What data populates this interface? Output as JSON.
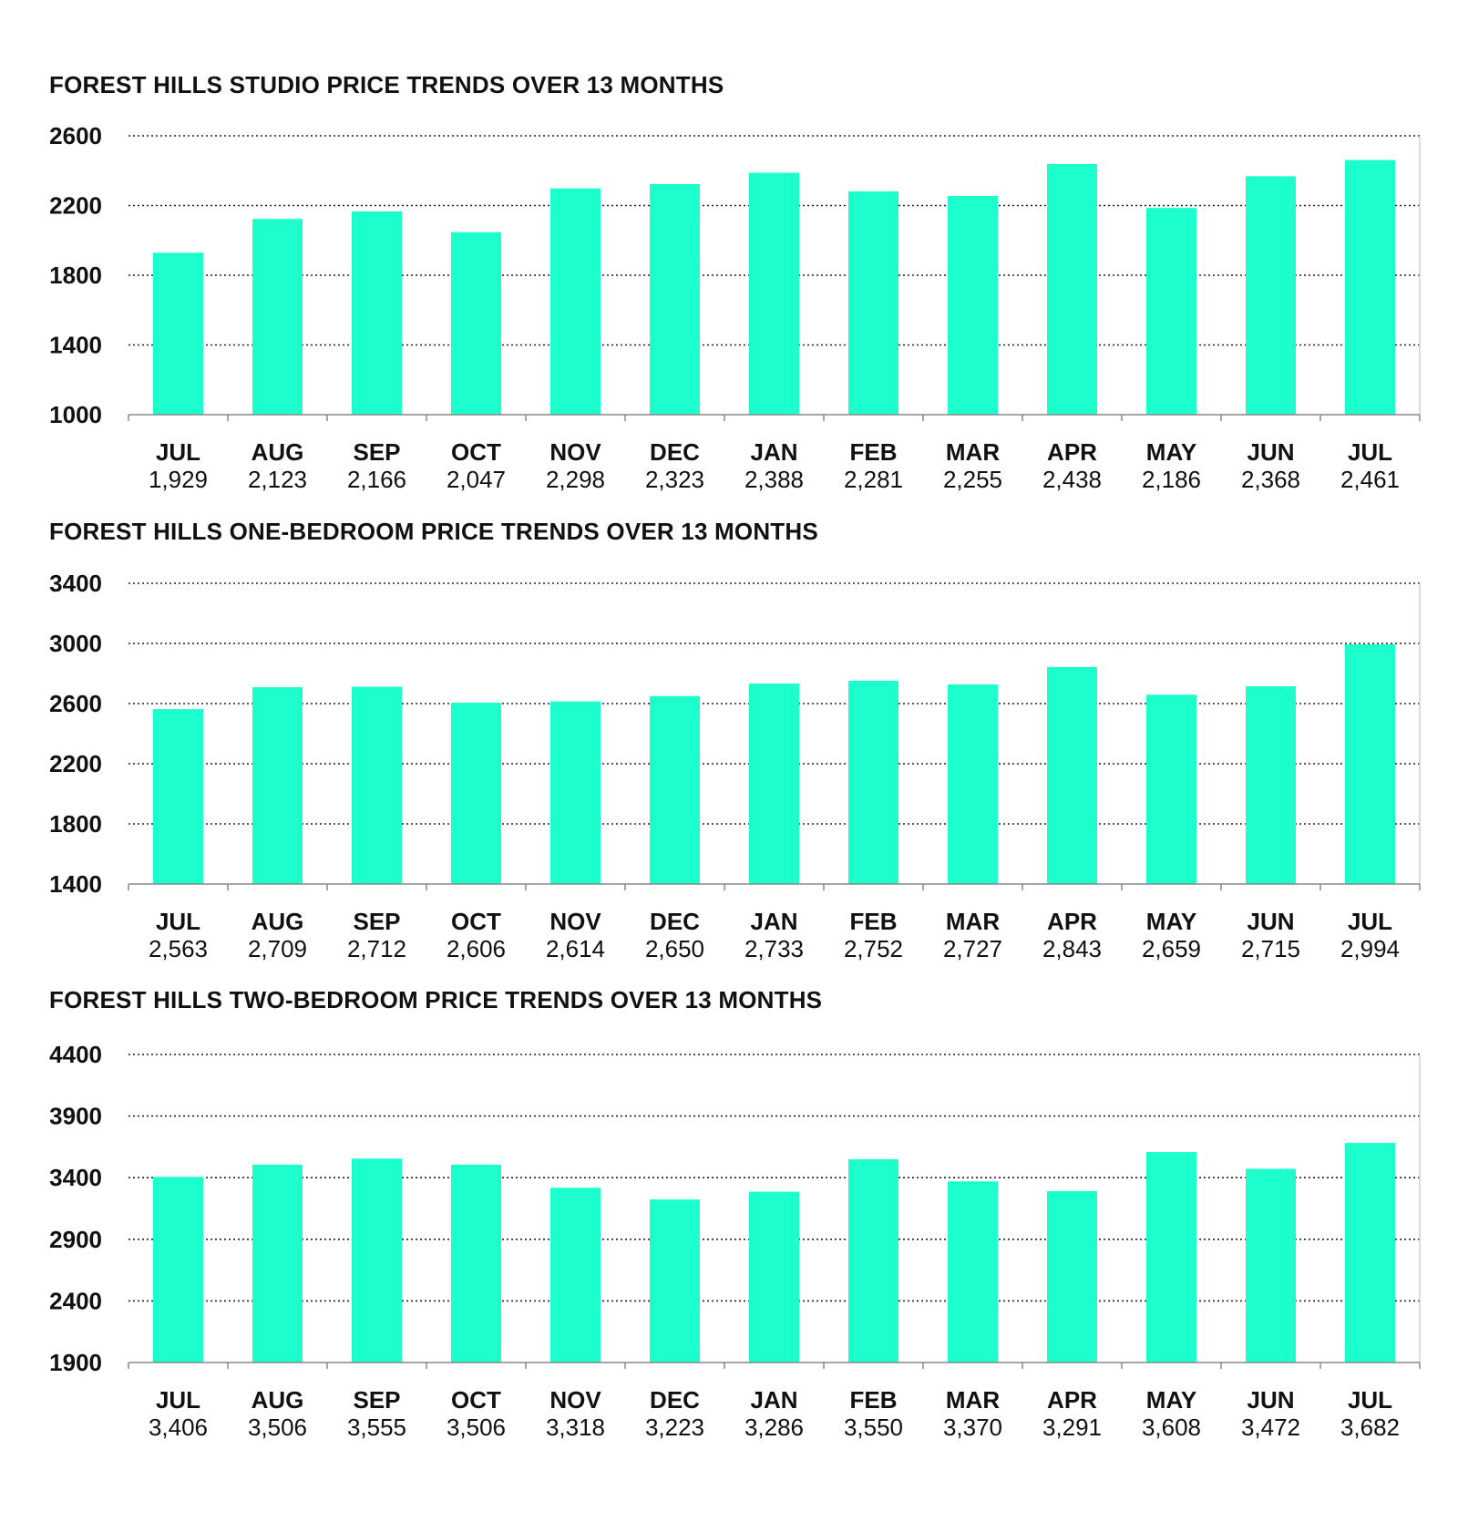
{
  "chart_data": [
    {
      "type": "bar",
      "title": "FOREST HILLS STUDIO PRICE TRENDS OVER 13 MONTHS",
      "categories": [
        "JUL",
        "AUG",
        "SEP",
        "OCT",
        "NOV",
        "DEC",
        "JAN",
        "FEB",
        "MAR",
        "APR",
        "MAY",
        "JUN",
        "JUL"
      ],
      "value_labels": [
        "1,929",
        "2,123",
        "2,166",
        "2,047",
        "2,298",
        "2,323",
        "2,388",
        "2,281",
        "2,255",
        "2,438",
        "2,186",
        "2,368",
        "2,461"
      ],
      "values": [
        1929,
        2123,
        2166,
        2047,
        2298,
        2323,
        2388,
        2281,
        2255,
        2438,
        2186,
        2368,
        2461
      ],
      "yticks": [
        "1000",
        "1400",
        "1800",
        "2200",
        "2600"
      ],
      "ylim": [
        1000,
        2600
      ],
      "grid": true,
      "bar_color": "#1CFFCC"
    },
    {
      "type": "bar",
      "title": "FOREST HILLS ONE-BEDROOM PRICE TRENDS OVER 13 MONTHS",
      "categories": [
        "JUL",
        "AUG",
        "SEP",
        "OCT",
        "NOV",
        "DEC",
        "JAN",
        "FEB",
        "MAR",
        "APR",
        "MAY",
        "JUN",
        "JUL"
      ],
      "value_labels": [
        "2,563",
        "2,709",
        "2,712",
        "2,606",
        "2,614",
        "2,650",
        "2,733",
        "2,752",
        "2,727",
        "2,843",
        "2,659",
        "2,715",
        "2,994"
      ],
      "values": [
        2563,
        2709,
        2712,
        2606,
        2614,
        2650,
        2733,
        2752,
        2727,
        2843,
        2659,
        2715,
        2994
      ],
      "yticks": [
        "1400",
        "1800",
        "2200",
        "2600",
        "3000",
        "3400"
      ],
      "ylim": [
        1400,
        3400
      ],
      "grid": true,
      "bar_color": "#1CFFCC"
    },
    {
      "type": "bar",
      "title": "FOREST HILLS TWO-BEDROOM PRICE TRENDS OVER 13 MONTHS",
      "categories": [
        "JUL",
        "AUG",
        "SEP",
        "OCT",
        "NOV",
        "DEC",
        "JAN",
        "FEB",
        "MAR",
        "APR",
        "MAY",
        "JUN",
        "JUL"
      ],
      "value_labels": [
        "3,406",
        "3,506",
        "3,555",
        "3,506",
        "3,318",
        "3,223",
        "3,286",
        "3,550",
        "3,370",
        "3,291",
        "3,608",
        "3,472",
        "3,682"
      ],
      "values": [
        3406,
        3506,
        3555,
        3506,
        3318,
        3223,
        3286,
        3550,
        3370,
        3291,
        3608,
        3472,
        3682
      ],
      "yticks": [
        "1900",
        "2400",
        "2900",
        "3400",
        "3900",
        "4400"
      ],
      "ylim": [
        1900,
        4400
      ],
      "grid": true,
      "bar_color": "#1CFFCC"
    }
  ]
}
